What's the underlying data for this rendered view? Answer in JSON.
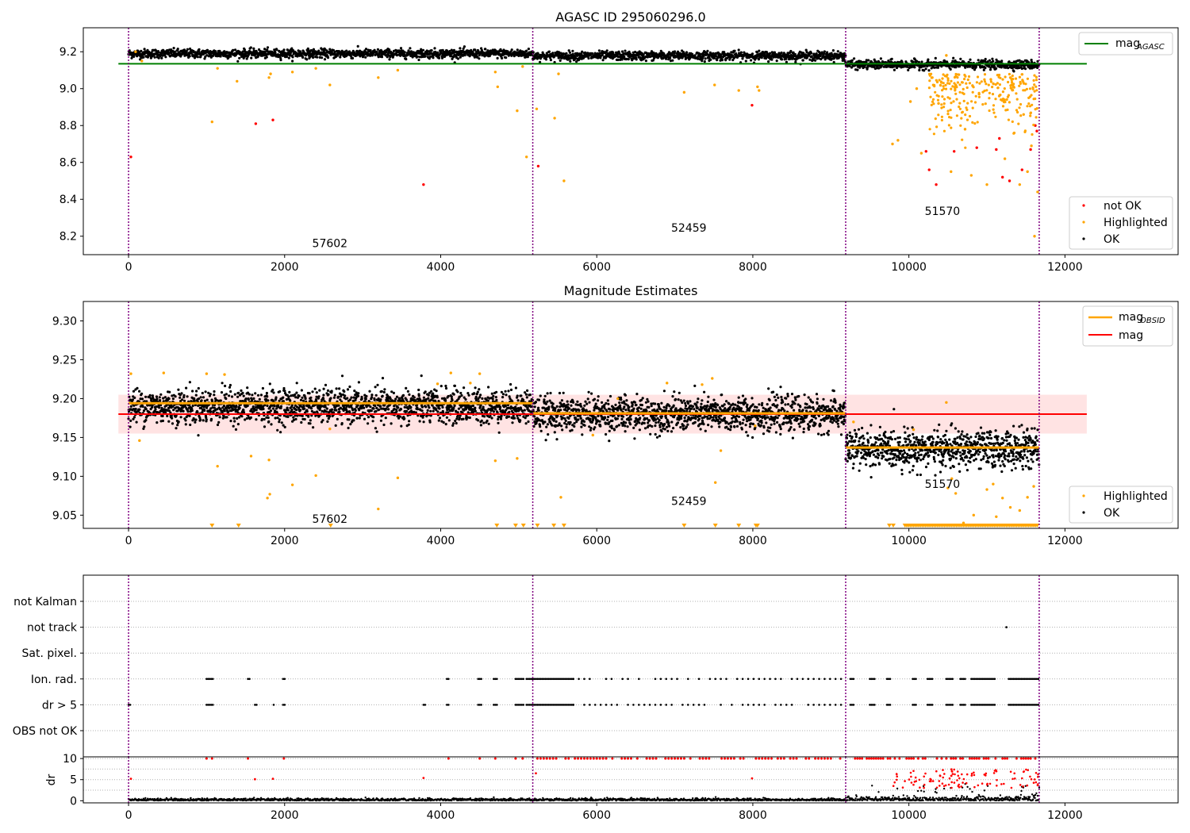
{
  "figure": {
    "top": {
      "title": "AGASC ID 295060296.0",
      "xlim": [
        -580,
        13450
      ],
      "ylim": [
        8.1,
        9.33
      ],
      "xticks": [
        0,
        2000,
        4000,
        6000,
        8000,
        10000,
        12000
      ],
      "yticks": [
        8.2,
        8.4,
        8.6,
        8.8,
        9.0,
        9.2
      ],
      "ytick_labels": [
        "8.2",
        "8.4",
        "8.6",
        "8.8",
        "9.0",
        "9.2"
      ],
      "mag_agasc": 9.135,
      "obsids": [
        {
          "label": "57602",
          "x": 2580,
          "y": 8.14
        },
        {
          "label": "52459",
          "x": 7180,
          "y": 8.225
        },
        {
          "label": "51570",
          "x": 10430,
          "y": 8.315
        }
      ],
      "legend_line": {
        "label": "mag",
        "sub": "AGASC"
      },
      "legend_points": [
        "not OK",
        "Highlighted",
        "OK"
      ]
    },
    "middle": {
      "title": "Magnitude Estimates",
      "xlim": [
        -580,
        13450
      ],
      "ylim": [
        9.033,
        9.325
      ],
      "xticks": [
        0,
        2000,
        4000,
        6000,
        8000,
        10000,
        12000
      ],
      "yticks": [
        9.05,
        9.1,
        9.15,
        9.2,
        9.25,
        9.3
      ],
      "ytick_labels": [
        "9.05",
        "9.10",
        "9.15",
        "9.20",
        "9.25",
        "9.30"
      ],
      "mag": 9.18,
      "mag_band": [
        9.155,
        9.205
      ],
      "mag_obsid": [
        {
          "x0": 0,
          "x1": 5180,
          "value": 9.194
        },
        {
          "x0": 5180,
          "x1": 9190,
          "value": 9.181
        },
        {
          "x0": 9190,
          "x1": 11670,
          "value": 9.137
        }
      ],
      "obsids": [
        {
          "label": "57602",
          "x": 2580,
          "y": 9.04
        },
        {
          "label": "52459",
          "x": 7180,
          "y": 9.063
        },
        {
          "label": "51570",
          "x": 10430,
          "y": 9.085
        }
      ],
      "legend_lines": [
        {
          "label": "mag",
          "sub": "OBSID",
          "color": "#ffa500"
        },
        {
          "label": "mag",
          "sub": "",
          "color": "#ff0000"
        }
      ],
      "legend_points": [
        "Highlighted",
        "OK"
      ]
    },
    "flags": {
      "xlim": [
        -580,
        13450
      ],
      "categories": [
        "not Kalman",
        "not track",
        "Sat. pixel.",
        "Ion. rad.",
        "dr > 5",
        "OBS not OK"
      ]
    },
    "dr": {
      "ylabel": "dr",
      "xlim": [
        -580,
        13450
      ],
      "ylim": [
        -0.5,
        10.4
      ],
      "yticks": [
        0,
        5,
        10
      ],
      "ytick_labels": [
        "0",
        "5",
        "10"
      ],
      "xticks": [
        0,
        2000,
        4000,
        6000,
        8000,
        10000,
        12000
      ]
    },
    "xtick_labels": [
      "0",
      "2000",
      "4000",
      "6000",
      "8000",
      "10000",
      "12000"
    ],
    "obsid_boundaries": [
      0,
      5180,
      9190,
      11670
    ]
  },
  "chart_data": [
    {
      "type": "scatter",
      "title": "AGASC ID 295060296.0",
      "xlim": [
        -580,
        13450
      ],
      "ylim": [
        8.1,
        9.33
      ],
      "series": [
        {
          "name": "OK",
          "color": "#000000",
          "segments": [
            {
              "x": [
                0,
                5180
              ],
              "mean": 9.19,
              "noise": 0.012
            },
            {
              "x": [
                5180,
                9190
              ],
              "mean": 9.178,
              "noise": 0.012
            },
            {
              "x": [
                9190,
                11670
              ],
              "mean": 9.13,
              "noise": 0.012
            }
          ]
        },
        {
          "name": "Highlighted",
          "color": "#ffa500",
          "points": [
            [
              90,
              9.2
            ],
            [
              170,
              9.15
            ],
            [
              1070,
              8.82
            ],
            [
              1140,
              9.11
            ],
            [
              1390,
              9.04
            ],
            [
              1820,
              9.08
            ],
            [
              1800,
              9.06
            ],
            [
              2100,
              9.09
            ],
            [
              2400,
              9.11
            ],
            [
              2580,
              9.02
            ],
            [
              3200,
              9.06
            ],
            [
              3450,
              9.1
            ],
            [
              4730,
              9.01
            ],
            [
              4700,
              9.09
            ],
            [
              4980,
              8.88
            ],
            [
              5050,
              9.12
            ],
            [
              5100,
              8.63
            ],
            [
              5230,
              8.89
            ],
            [
              5460,
              8.84
            ],
            [
              5510,
              9.08
            ],
            [
              5580,
              8.5
            ],
            [
              7120,
              8.98
            ],
            [
              7510,
              9.02
            ],
            [
              7820,
              8.99
            ],
            [
              8060,
              9.01
            ],
            [
              8080,
              8.99
            ],
            [
              9790,
              8.7
            ],
            [
              9860,
              8.72
            ],
            [
              10020,
              8.93
            ],
            [
              10100,
              9.0
            ],
            [
              10160,
              8.65
            ],
            [
              10300,
              9.06
            ],
            [
              10380,
              8.92
            ],
            [
              10480,
              9.18
            ],
            [
              10540,
              8.55
            ],
            [
              10600,
              9.02
            ],
            [
              10720,
              8.78
            ],
            [
              10800,
              8.53
            ],
            [
              10900,
              8.97
            ],
            [
              11000,
              8.48
            ],
            [
              11050,
              9.05
            ],
            [
              11180,
              8.94
            ],
            [
              11230,
              8.62
            ],
            [
              11300,
              9.06
            ],
            [
              11350,
              8.76
            ],
            [
              11420,
              8.48
            ],
            [
              11470,
              8.86
            ],
            [
              11520,
              8.55
            ],
            [
              11570,
              8.69
            ],
            [
              11610,
              8.2
            ],
            [
              11650,
              8.44
            ]
          ]
        },
        {
          "name": "not OK",
          "color": "#ff0000",
          "points": [
            [
              30,
              8.63
            ],
            [
              1630,
              8.81
            ],
            [
              1850,
              8.83
            ],
            [
              3780,
              8.48
            ],
            [
              5250,
              8.58
            ],
            [
              7990,
              8.91
            ],
            [
              10220,
              8.66
            ],
            [
              10260,
              8.56
            ],
            [
              10350,
              8.48
            ],
            [
              10580,
              8.66
            ],
            [
              10870,
              8.68
            ],
            [
              11120,
              8.67
            ],
            [
              11160,
              8.73
            ],
            [
              11200,
              8.52
            ],
            [
              11290,
              8.5
            ],
            [
              11450,
              8.56
            ],
            [
              11560,
              8.67
            ],
            [
              11620,
              8.8
            ],
            [
              11640,
              8.77
            ]
          ]
        }
      ]
    },
    {
      "type": "scatter",
      "title": "Magnitude Estimates",
      "xlim": [
        -580,
        13450
      ],
      "ylim": [
        9.033,
        9.325
      ],
      "series": [
        {
          "name": "OK",
          "color": "#000000",
          "segments": [
            {
              "x": [
                0,
                5180
              ],
              "mean": 9.19,
              "noise": 0.011
            },
            {
              "x": [
                5180,
                9190
              ],
              "mean": 9.18,
              "noise": 0.011
            },
            {
              "x": [
                9190,
                11670
              ],
              "mean": 9.135,
              "noise": 0.012
            }
          ]
        },
        {
          "name": "Highlighted",
          "color": "#ffa500",
          "points": [
            [
              30,
              9.232
            ],
            [
              140,
              9.146
            ],
            [
              450,
              9.233
            ],
            [
              1000,
              9.232
            ],
            [
              1140,
              9.113
            ],
            [
              1230,
              9.231
            ],
            [
              1570,
              9.126
            ],
            [
              1800,
              9.121
            ],
            [
              1780,
              9.072
            ],
            [
              1810,
              9.077
            ],
            [
              2100,
              9.089
            ],
            [
              2400,
              9.101
            ],
            [
              2580,
              9.161
            ],
            [
              3200,
              9.058
            ],
            [
              3450,
              9.098
            ],
            [
              3960,
              9.219
            ],
            [
              4130,
              9.233
            ],
            [
              4380,
              9.22
            ],
            [
              4500,
              9.232
            ],
            [
              4700,
              9.12
            ],
            [
              4980,
              9.123
            ],
            [
              5540,
              9.073
            ],
            [
              5950,
              9.153
            ],
            [
              6270,
              9.2
            ],
            [
              6900,
              9.22
            ],
            [
              7350,
              9.218
            ],
            [
              7480,
              9.226
            ],
            [
              7520,
              9.092
            ],
            [
              7590,
              9.133
            ],
            [
              8030,
              9.165
            ],
            [
              9290,
              9.17
            ],
            [
              10060,
              9.16
            ],
            [
              10480,
              9.195
            ],
            [
              10500,
              9.085
            ],
            [
              10550,
              9.097
            ],
            [
              10600,
              9.078
            ],
            [
              10700,
              9.04
            ],
            [
              10830,
              9.05
            ],
            [
              11000,
              9.083
            ],
            [
              11080,
              9.09
            ],
            [
              11120,
              9.048
            ],
            [
              11200,
              9.072
            ],
            [
              11300,
              9.06
            ],
            [
              11420,
              9.056
            ],
            [
              11520,
              9.073
            ],
            [
              11600,
              9.087
            ]
          ]
        },
        {
          "name": "mag (OBSID)",
          "color": "#ffa500",
          "values": [
            9.194,
            9.181,
            9.137
          ]
        },
        {
          "name": "mag",
          "color": "#ff0000",
          "values": [
            9.18
          ]
        }
      ]
    },
    {
      "type": "scatter",
      "title": "",
      "categories": [
        "not Kalman",
        "not track",
        "Sat. pixel.",
        "Ion. rad.",
        "dr > 5",
        "OBS not OK"
      ],
      "series": [
        {
          "name": "not track",
          "color": "#000000",
          "points": [
            [
              11250,
              "not track"
            ]
          ]
        },
        {
          "name": "Ion. rad.",
          "color": "#000000",
          "clusters": [
            [
              1000,
              1080
            ],
            [
              1530,
              1560
            ],
            [
              1980,
              2010
            ],
            [
              4080,
              4110
            ],
            [
              4480,
              4520
            ],
            [
              4680,
              4730
            ],
            [
              4960,
              5060
            ],
            [
              5100,
              5700
            ],
            [
              5700,
              9190
            ],
            [
              9250,
              9300
            ],
            [
              9500,
              9560
            ],
            [
              9720,
              9760
            ],
            [
              10050,
              10090
            ],
            [
              10240,
              10300
            ],
            [
              10480,
              10560
            ],
            [
              10660,
              10720
            ],
            [
              10800,
              11100
            ],
            [
              11280,
              11670
            ]
          ]
        },
        {
          "name": "dr > 5",
          "color": "#000000",
          "clusters": [
            [
              0,
              20
            ],
            [
              1000,
              1080
            ],
            [
              1620,
              1650
            ],
            [
              1860,
              1870
            ],
            [
              1980,
              2010
            ],
            [
              3780,
              3800
            ],
            [
              4080,
              4110
            ],
            [
              4480,
              4520
            ],
            [
              4680,
              4730
            ],
            [
              4960,
              5060
            ],
            [
              5100,
              5700
            ],
            [
              5700,
              9190
            ],
            [
              9250,
              9300
            ],
            [
              9500,
              9560
            ],
            [
              9720,
              9760
            ],
            [
              10050,
              10090
            ],
            [
              10240,
              10300
            ],
            [
              10480,
              10560
            ],
            [
              10660,
              10720
            ],
            [
              10800,
              11100
            ],
            [
              11280,
              11670
            ]
          ]
        }
      ]
    },
    {
      "type": "scatter",
      "ylabel": "dr",
      "ylim": [
        -0.5,
        10.4
      ],
      "series": [
        {
          "name": "OK",
          "color": "#000000",
          "range": [
            0,
            11670
          ],
          "mean": 0.3
        },
        {
          "name": "not OK",
          "color": "#ff0000",
          "capped_at": 10
        }
      ]
    }
  ]
}
